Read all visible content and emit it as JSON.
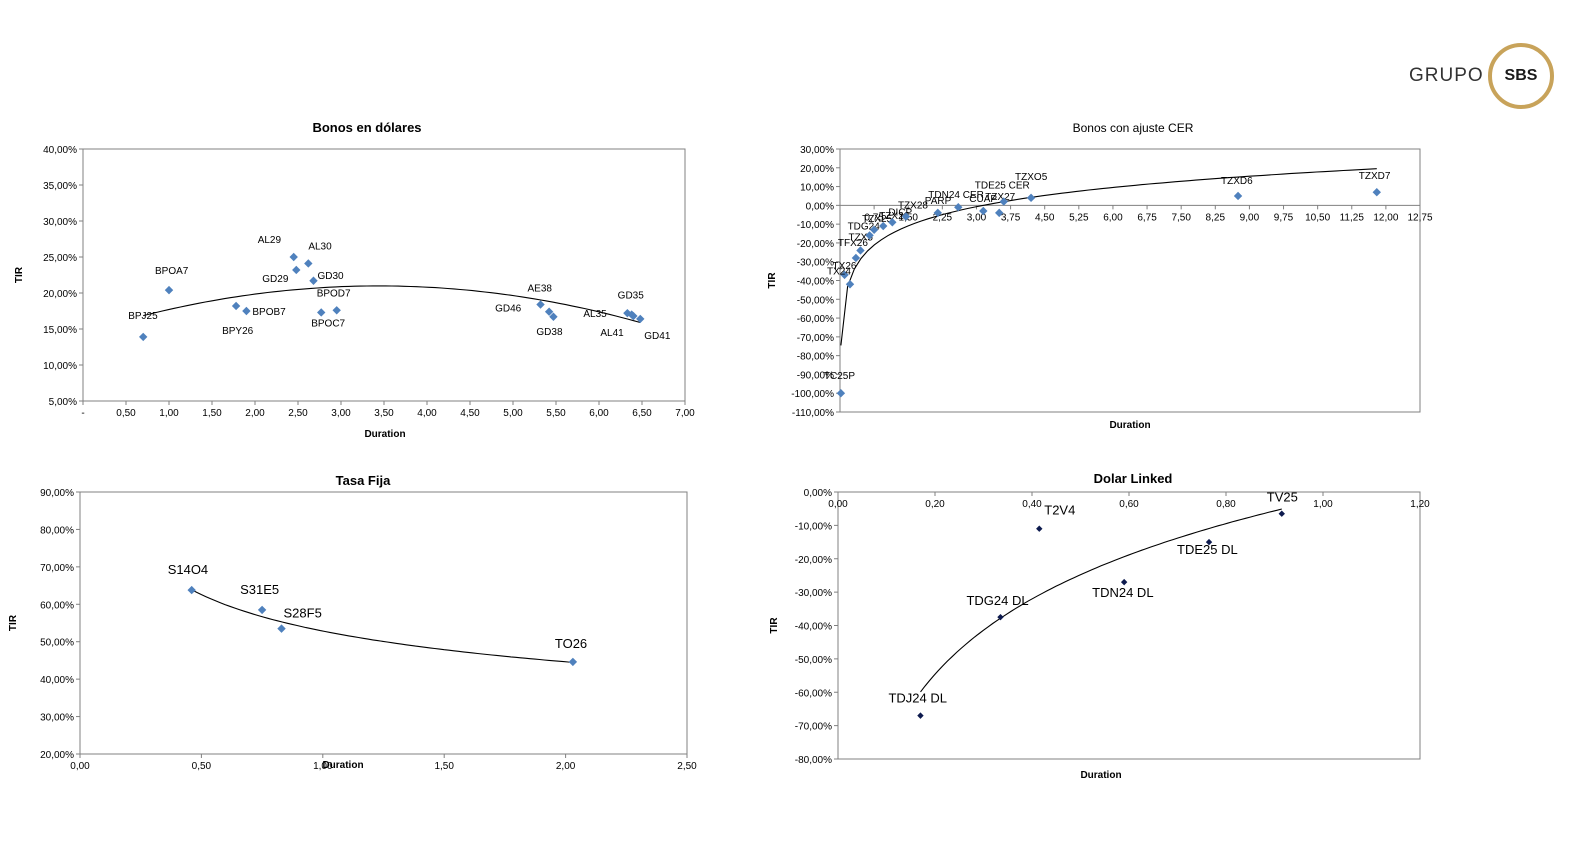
{
  "brand": {
    "prefix": "GRUPO",
    "badge": "SBS"
  },
  "colors": {
    "marker": "#4f81bd",
    "marker_dark": "#0d1a4e",
    "gold": "#c8a35a",
    "trend": "#000000"
  },
  "chart_data": [
    {
      "id": "usd",
      "type": "scatter",
      "title": "Bonos  en dólares",
      "xlabel": "Duration",
      "ylabel": "TIR",
      "xlim": [
        0,
        7
      ],
      "ylim": [
        0.05,
        0.4
      ],
      "xticks": [
        0,
        0.5,
        1,
        1.5,
        2,
        2.5,
        3,
        3.5,
        4,
        4.5,
        5,
        5.5,
        6,
        6.5,
        7
      ],
      "xtick_labels": [
        "-",
        "0,50",
        "1,00",
        "1,50",
        "2,00",
        "2,50",
        "3,00",
        "3,50",
        "4,00",
        "4,50",
        "5,00",
        "5,50",
        "6,00",
        "6,50",
        "7,00"
      ],
      "yticks": [
        0.05,
        0.1,
        0.15,
        0.2,
        0.25,
        0.3,
        0.35,
        0.4
      ],
      "ytick_labels": [
        "5,00%",
        "10,00%",
        "15,00%",
        "20,00%",
        "25,00%",
        "30,00%",
        "35,00%",
        "40,00%"
      ],
      "trendline": "polynomial",
      "points": [
        {
          "name": "BPJ25",
          "x": 0.7,
          "y": 0.139
        },
        {
          "name": "BPOA7",
          "x": 1.0,
          "y": 0.204
        },
        {
          "name": "BPY26",
          "x": 1.78,
          "y": 0.182
        },
        {
          "name": "BPOB7",
          "x": 1.9,
          "y": 0.175
        },
        {
          "name": "AL29",
          "x": 2.45,
          "y": 0.25
        },
        {
          "name": "GD29",
          "x": 2.48,
          "y": 0.232
        },
        {
          "name": "AL30",
          "x": 2.62,
          "y": 0.241
        },
        {
          "name": "GD30",
          "x": 2.68,
          "y": 0.217
        },
        {
          "name": "BPOC7",
          "x": 2.77,
          "y": 0.173
        },
        {
          "name": "BPOD7",
          "x": 2.95,
          "y": 0.176
        },
        {
          "name": "AE38",
          "x": 5.32,
          "y": 0.184
        },
        {
          "name": "GD46",
          "x": 5.42,
          "y": 0.174
        },
        {
          "name": "GD38",
          "x": 5.47,
          "y": 0.167
        },
        {
          "name": "AL35",
          "x": 6.33,
          "y": 0.172
        },
        {
          "name": "GD35",
          "x": 6.38,
          "y": 0.17
        },
        {
          "name": "AL41",
          "x": 6.4,
          "y": 0.168
        },
        {
          "name": "GD41",
          "x": 6.48,
          "y": 0.164
        }
      ]
    },
    {
      "id": "cer",
      "type": "scatter",
      "title": "Bonos con ajuste CER",
      "xlabel": "Duration",
      "ylabel": "TIR",
      "xlim": [
        0,
        12.75
      ],
      "ylim": [
        -1.1,
        0.3
      ],
      "xticks": [
        0.75,
        1.5,
        2.25,
        3,
        3.75,
        4.5,
        5.25,
        6,
        6.75,
        7.5,
        8.25,
        9,
        9.75,
        10.5,
        11.25,
        12,
        12.75
      ],
      "xtick_labels": [
        "0,75",
        "1,50",
        "2,25",
        "3,00",
        "3,75",
        "4,50",
        "5,25",
        "6,00",
        "6,75",
        "7,50",
        "8,25",
        "9,00",
        "9,75",
        "10,50",
        "11,25",
        "12,00",
        "12,75"
      ],
      "yticks": [
        -1.1,
        -1.0,
        -0.9,
        -0.8,
        -0.7,
        -0.6,
        -0.5,
        -0.4,
        -0.3,
        -0.2,
        -0.1,
        0,
        0.1,
        0.2,
        0.3
      ],
      "ytick_labels": [
        "-110,00%",
        "-100,00%",
        "-90,00%",
        "-80,00%",
        "-70,00%",
        "-60,00%",
        "-50,00%",
        "-40,00%",
        "-30,00%",
        "-20,00%",
        "-10,00%",
        "0,00%",
        "10,00%",
        "20,00%",
        "30,00%"
      ],
      "trendline": "logarithmic",
      "points": [
        {
          "name": "TC25P",
          "x": 0.02,
          "y": -1.0
        },
        {
          "name": "TX26",
          "x": 0.1,
          "y": -0.37
        },
        {
          "name": "TX24",
          "x": 0.22,
          "y": -0.42
        },
        {
          "name": "TFX26",
          "x": 0.35,
          "y": -0.28
        },
        {
          "name": "TZX5",
          "x": 0.45,
          "y": -0.24
        },
        {
          "name": "TDG24",
          "x": 0.65,
          "y": -0.16
        },
        {
          "name": "TZX25",
          "x": 0.75,
          "y": -0.13
        },
        {
          "name": "TZX26",
          "x": 0.95,
          "y": -0.11
        },
        {
          "name": "DICP",
          "x": 1.15,
          "y": -0.09
        },
        {
          "name": "TZX28",
          "x": 1.45,
          "y": -0.06
        },
        {
          "name": "PARP",
          "x": 2.15,
          "y": -0.04
        },
        {
          "name": "TDN24 CER",
          "x": 2.6,
          "y": -0.01
        },
        {
          "name": "CUAP",
          "x": 3.15,
          "y": -0.03
        },
        {
          "name": "TZX27",
          "x": 3.5,
          "y": -0.04
        },
        {
          "name": "TDE25 CER",
          "x": 3.6,
          "y": 0.02
        },
        {
          "name": "TZXO5",
          "x": 4.2,
          "y": 0.04
        },
        {
          "name": "TZXD6",
          "x": 8.75,
          "y": 0.05
        },
        {
          "name": "TZXD7",
          "x": 11.8,
          "y": 0.07
        }
      ]
    },
    {
      "id": "fija",
      "type": "scatter",
      "title": "Tasa Fija",
      "xlabel": "Duration",
      "ylabel": "TIR",
      "xlim": [
        0,
        2.5
      ],
      "ylim": [
        0.2,
        0.9
      ],
      "xticks": [
        0,
        0.5,
        1,
        1.5,
        2,
        2.5
      ],
      "xtick_labels": [
        "0,00",
        "0,50",
        "1,00",
        "1,50",
        "2,00",
        "2,50"
      ],
      "yticks": [
        0.2,
        0.3,
        0.4,
        0.5,
        0.6,
        0.7,
        0.8,
        0.9
      ],
      "ytick_labels": [
        "20,00%",
        "30,00%",
        "40,00%",
        "50,00%",
        "60,00%",
        "70,00%",
        "80,00%",
        "90,00%"
      ],
      "trendline": "power",
      "points": [
        {
          "name": "S14O4",
          "x": 0.46,
          "y": 0.638
        },
        {
          "name": "S31E5",
          "x": 0.75,
          "y": 0.585
        },
        {
          "name": "S28F5",
          "x": 0.83,
          "y": 0.535
        },
        {
          "name": "TO26",
          "x": 2.03,
          "y": 0.446
        }
      ]
    },
    {
      "id": "dl",
      "type": "scatter",
      "title": "Dolar Linked",
      "xlabel": "Duration",
      "ylabel": "TIR",
      "xlim": [
        0,
        1.2
      ],
      "ylim": [
        -0.8,
        0
      ],
      "xticks": [
        0,
        0.2,
        0.4,
        0.6,
        0.8,
        1.0,
        1.2
      ],
      "xtick_labels": [
        "0,00",
        "0,20",
        "0,40",
        "0,60",
        "0,80",
        "1,00",
        "1,20"
      ],
      "yticks": [
        -0.8,
        -0.7,
        -0.6,
        -0.5,
        -0.4,
        -0.3,
        -0.2,
        -0.1,
        0
      ],
      "ytick_labels": [
        "-80,00%",
        "-70,00%",
        "-60,00%",
        "-50,00%",
        "-40,00%",
        "-30,00%",
        "-20,00%",
        "-10,00%",
        "0,00%"
      ],
      "trendline": "logarithmic",
      "points": [
        {
          "name": "TDJ24 DL",
          "x": 0.17,
          "y": -0.67
        },
        {
          "name": "TDG24 DL",
          "x": 0.335,
          "y": -0.375
        },
        {
          "name": "T2V4",
          "x": 0.415,
          "y": -0.11
        },
        {
          "name": "TDN24 DL",
          "x": 0.59,
          "y": -0.27
        },
        {
          "name": "TDE25 DL",
          "x": 0.765,
          "y": -0.15
        },
        {
          "name": "TV25",
          "x": 0.915,
          "y": -0.065
        }
      ]
    }
  ]
}
